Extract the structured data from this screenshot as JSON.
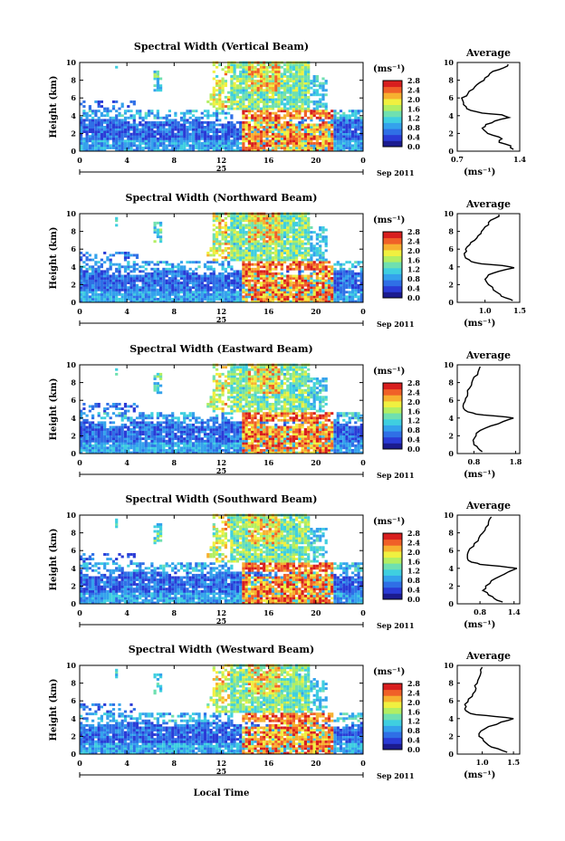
{
  "chart_data": [
    {
      "type": "heatmap",
      "title": "Spectral Width (Vertical Beam)",
      "ylabel": "Height (km)",
      "xlim": [
        0,
        24
      ],
      "ylim": [
        0,
        10
      ],
      "x_ticks": [
        "0",
        "4",
        "8",
        "12",
        "16",
        "20",
        "0"
      ],
      "y_ticks": [
        "0",
        "2",
        "4",
        "6",
        "8",
        "10"
      ],
      "day_label": "25",
      "date_label": "Sep 2011",
      "colorbar": {
        "unit": "(ms⁻¹)",
        "range": [
          0,
          2.8
        ],
        "ticks": [
          "0.0",
          "0.4",
          "0.8",
          "1.2",
          "1.6",
          "2.0",
          "2.4",
          "2.8"
        ]
      },
      "average": {
        "title": "Average",
        "unit": "(ms⁻¹)",
        "xlim": [
          0.7,
          1.4
        ],
        "x_ticks": [
          "0.7",
          "1.4"
        ],
        "profile": [
          [
            1.33,
            0.2
          ],
          [
            1.3,
            0.6
          ],
          [
            1.17,
            1.0
          ],
          [
            1.2,
            1.4
          ],
          [
            1.1,
            1.8
          ],
          [
            1.02,
            2.2
          ],
          [
            0.98,
            2.6
          ],
          [
            1.02,
            3.0
          ],
          [
            1.12,
            3.4
          ],
          [
            1.28,
            3.8
          ],
          [
            1.2,
            4.1
          ],
          [
            0.98,
            4.3
          ],
          [
            0.85,
            4.6
          ],
          [
            0.8,
            5.0
          ],
          [
            0.77,
            5.5
          ],
          [
            0.75,
            6.0
          ],
          [
            0.82,
            6.5
          ],
          [
            0.88,
            7.0
          ],
          [
            0.92,
            7.5
          ],
          [
            1.0,
            8.0
          ],
          [
            1.05,
            8.5
          ],
          [
            1.1,
            9.0
          ],
          [
            1.22,
            9.4
          ],
          [
            1.27,
            9.8
          ]
        ]
      }
    },
    {
      "type": "heatmap",
      "title": "Spectral Width (Northward Beam)",
      "ylabel": "Height (km)",
      "xlim": [
        0,
        24
      ],
      "ylim": [
        0,
        10
      ],
      "x_ticks": [
        "0",
        "4",
        "8",
        "12",
        "16",
        "20",
        "0"
      ],
      "y_ticks": [
        "0",
        "2",
        "4",
        "6",
        "8",
        "10"
      ],
      "day_label": "25",
      "date_label": "Sep 2011",
      "colorbar": {
        "unit": "(ms⁻¹)",
        "range": [
          0,
          2.8
        ],
        "ticks": [
          "0.0",
          "0.4",
          "0.8",
          "1.2",
          "1.6",
          "2.0",
          "2.4",
          "2.8"
        ]
      },
      "average": {
        "title": "Average",
        "unit": "(ms⁻¹)",
        "xlim": [
          0.6,
          1.5
        ],
        "x_ticks": [
          "1.0",
          "1.5"
        ],
        "profile": [
          [
            1.4,
            0.2
          ],
          [
            1.3,
            0.5
          ],
          [
            1.22,
            0.9
          ],
          [
            1.12,
            1.4
          ],
          [
            1.05,
            2.0
          ],
          [
            1.0,
            2.6
          ],
          [
            1.05,
            3.1
          ],
          [
            1.2,
            3.5
          ],
          [
            1.42,
            3.9
          ],
          [
            1.25,
            4.15
          ],
          [
            0.95,
            4.35
          ],
          [
            0.8,
            4.6
          ],
          [
            0.72,
            5.0
          ],
          [
            0.7,
            5.5
          ],
          [
            0.72,
            6.0
          ],
          [
            0.78,
            6.5
          ],
          [
            0.85,
            7.0
          ],
          [
            0.9,
            7.5
          ],
          [
            0.95,
            8.0
          ],
          [
            1.0,
            8.5
          ],
          [
            1.05,
            9.0
          ],
          [
            1.15,
            9.5
          ],
          [
            1.2,
            9.9
          ]
        ]
      }
    },
    {
      "type": "heatmap",
      "title": "Spectral Width (Eastward Beam)",
      "ylabel": "Height (km)",
      "xlim": [
        0,
        24
      ],
      "ylim": [
        0,
        10
      ],
      "x_ticks": [
        "0",
        "4",
        "8",
        "12",
        "16",
        "20",
        "0"
      ],
      "y_ticks": [
        "0",
        "2",
        "4",
        "6",
        "8",
        "10"
      ],
      "day_label": "25",
      "date_label": "Sep 2011",
      "colorbar": {
        "unit": "(ms⁻¹)",
        "range": [
          0,
          2.8
        ],
        "ticks": [
          "0.0",
          "0.4",
          "0.8",
          "1.2",
          "1.6",
          "2.0",
          "2.4",
          "2.8"
        ]
      },
      "average": {
        "title": "Average",
        "unit": "(ms⁻¹)",
        "xlim": [
          0.4,
          1.9
        ],
        "x_ticks": [
          "0.8",
          "1.8"
        ],
        "profile": [
          [
            1.0,
            0.2
          ],
          [
            0.9,
            0.6
          ],
          [
            0.8,
            1.0
          ],
          [
            0.78,
            1.5
          ],
          [
            0.85,
            2.0
          ],
          [
            0.95,
            2.6
          ],
          [
            1.2,
            3.1
          ],
          [
            1.5,
            3.6
          ],
          [
            1.75,
            4.0
          ],
          [
            1.3,
            4.25
          ],
          [
            0.85,
            4.45
          ],
          [
            0.65,
            4.7
          ],
          [
            0.55,
            5.1
          ],
          [
            0.55,
            5.6
          ],
          [
            0.6,
            6.2
          ],
          [
            0.65,
            6.8
          ],
          [
            0.7,
            7.4
          ],
          [
            0.75,
            8.0
          ],
          [
            0.8,
            8.6
          ],
          [
            0.9,
            9.2
          ],
          [
            0.95,
            9.8
          ]
        ]
      }
    },
    {
      "type": "heatmap",
      "title": "Spectral Width (Southward Beam)",
      "ylabel": "Height (km)",
      "xlim": [
        0,
        24
      ],
      "ylim": [
        0,
        10
      ],
      "x_ticks": [
        "0",
        "4",
        "8",
        "12",
        "16",
        "20",
        "0"
      ],
      "y_ticks": [
        "0",
        "2",
        "4",
        "6",
        "8",
        "10"
      ],
      "day_label": "25",
      "date_label": "Sep 2011",
      "colorbar": {
        "unit": "(ms⁻¹)",
        "range": [
          0,
          2.8
        ],
        "ticks": [
          "0.0",
          "0.4",
          "0.8",
          "1.2",
          "1.6",
          "2.0",
          "2.4",
          "2.8"
        ]
      },
      "average": {
        "title": "Average",
        "unit": "(ms⁻¹)",
        "xlim": [
          0.4,
          1.5
        ],
        "x_ticks": [
          "0.8",
          "1.4"
        ],
        "profile": [
          [
            1.2,
            0.2
          ],
          [
            1.05,
            0.6
          ],
          [
            0.95,
            1.0
          ],
          [
            0.85,
            1.5
          ],
          [
            0.9,
            2.0
          ],
          [
            1.0,
            2.6
          ],
          [
            1.15,
            3.1
          ],
          [
            1.3,
            3.6
          ],
          [
            1.45,
            4.0
          ],
          [
            1.15,
            4.25
          ],
          [
            0.8,
            4.45
          ],
          [
            0.65,
            4.7
          ],
          [
            0.58,
            5.1
          ],
          [
            0.58,
            5.6
          ],
          [
            0.62,
            6.2
          ],
          [
            0.7,
            6.8
          ],
          [
            0.78,
            7.4
          ],
          [
            0.85,
            8.0
          ],
          [
            0.9,
            8.6
          ],
          [
            0.95,
            9.2
          ],
          [
            1.0,
            9.8
          ]
        ]
      }
    },
    {
      "type": "heatmap",
      "title": "Spectral Width (Westward Beam)",
      "ylabel": "Height (km)",
      "xlim": [
        0,
        24
      ],
      "ylim": [
        0,
        10
      ],
      "x_ticks": [
        "0",
        "4",
        "8",
        "12",
        "16",
        "20",
        "0"
      ],
      "y_ticks": [
        "0",
        "2",
        "4",
        "6",
        "8",
        "10"
      ],
      "day_label": "25",
      "date_label": "Sep 2011",
      "colorbar": {
        "unit": "(ms⁻¹)",
        "range": [
          0,
          2.8
        ],
        "ticks": [
          "0.0",
          "0.4",
          "0.8",
          "1.2",
          "1.6",
          "2.0",
          "2.4",
          "2.8"
        ]
      },
      "average": {
        "title": "Average",
        "unit": "(ms⁻¹)",
        "xlim": [
          0.6,
          1.6
        ],
        "x_ticks": [
          "1.0",
          "1.5"
        ],
        "profile": [
          [
            1.4,
            0.2
          ],
          [
            1.25,
            0.6
          ],
          [
            1.1,
            1.0
          ],
          [
            1.02,
            1.5
          ],
          [
            0.95,
            2.0
          ],
          [
            0.98,
            2.6
          ],
          [
            1.1,
            3.1
          ],
          [
            1.3,
            3.6
          ],
          [
            1.5,
            4.0
          ],
          [
            1.2,
            4.25
          ],
          [
            0.9,
            4.45
          ],
          [
            0.78,
            4.7
          ],
          [
            0.72,
            5.1
          ],
          [
            0.72,
            5.6
          ],
          [
            0.78,
            6.2
          ],
          [
            0.85,
            6.8
          ],
          [
            0.9,
            7.4
          ],
          [
            0.92,
            8.0
          ],
          [
            0.95,
            8.6
          ],
          [
            0.98,
            9.2
          ],
          [
            1.0,
            9.8
          ]
        ]
      }
    }
  ],
  "xlabel": "Local Time",
  "colormap": [
    "#1b1b8f",
    "#2a3bd6",
    "#2f6fe6",
    "#34a2ec",
    "#3fcfe0",
    "#6fe0b0",
    "#b2ee62",
    "#f0f040",
    "#f7b030",
    "#f06028",
    "#d81e1e"
  ]
}
